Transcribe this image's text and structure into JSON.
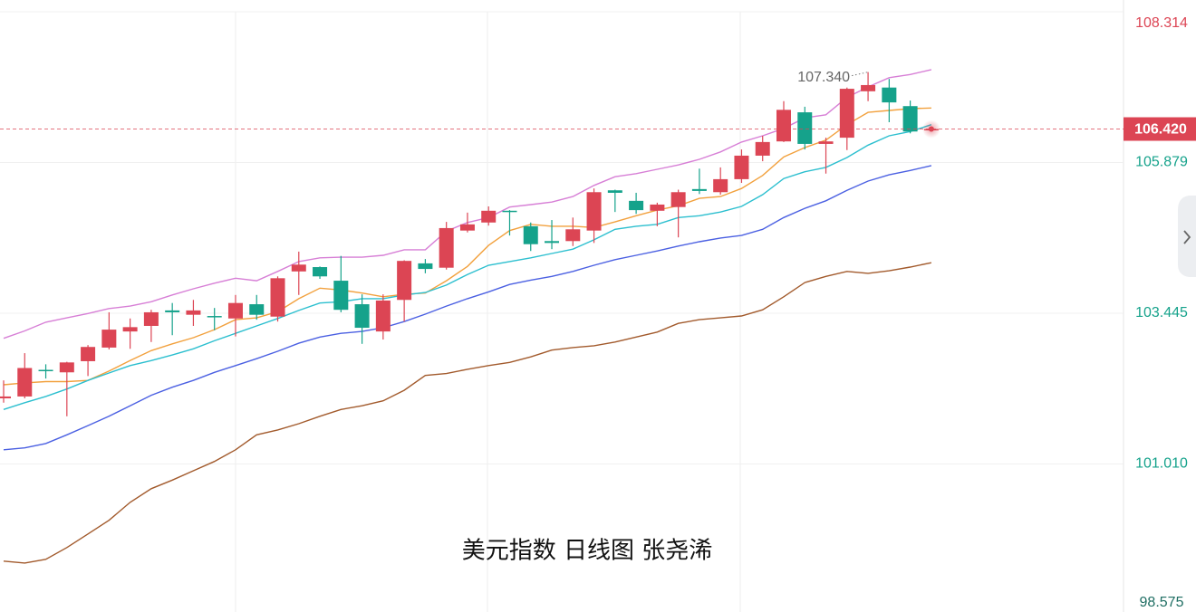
{
  "chart_data": {
    "type": "candlestick",
    "title": "美元指数 日线图  张尧浠",
    "ylim": [
      98.575,
      108.314
    ],
    "yticks": [
      108.314,
      105.879,
      103.445,
      {
        "value": 101.01,
        "label": "101.010"
      },
      98.575
    ],
    "grid": true,
    "up_color": "#dc4554",
    "down_color": "#15a28b",
    "open": [
      102.07,
      102.1,
      102.53,
      102.49,
      102.67,
      102.89,
      103.15,
      103.24,
      103.49,
      103.42,
      103.4,
      103.36,
      103.59,
      103.39,
      104.12,
      104.19,
      103.97,
      103.59,
      103.15,
      103.66,
      104.25,
      104.18,
      104.78,
      104.91,
      105.1,
      104.85,
      104.61,
      104.61,
      104.78,
      105.43,
      105.26,
      105.1,
      105.16,
      105.45,
      105.4,
      105.61,
      105.99,
      106.22,
      106.69,
      106.18,
      106.28,
      107.03,
      107.09,
      106.79,
      106.4
    ],
    "high": [
      102.36,
      102.8,
      102.62,
      102.66,
      102.93,
      103.46,
      103.36,
      103.5,
      103.61,
      103.66,
      103.53,
      103.74,
      103.74,
      104.04,
      104.44,
      104.2,
      104.37,
      103.75,
      103.75,
      104.3,
      104.32,
      104.92,
      105.07,
      105.17,
      105.11,
      104.91,
      104.95,
      104.99,
      105.46,
      105.44,
      105.39,
      105.23,
      105.44,
      105.78,
      105.8,
      106.09,
      106.31,
      106.87,
      106.78,
      106.28,
      107.09,
      107.34,
      107.23,
      106.88,
      106.46
    ],
    "low": [
      102.0,
      102.07,
      102.39,
      101.78,
      102.43,
      102.86,
      102.87,
      102.98,
      103.09,
      103.24,
      103.17,
      103.07,
      103.34,
      103.31,
      103.74,
      104.0,
      103.46,
      102.95,
      103.02,
      103.31,
      104.09,
      104.15,
      104.75,
      104.86,
      104.7,
      104.45,
      104.48,
      104.53,
      104.58,
      105.08,
      105.05,
      104.85,
      104.67,
      105.37,
      105.36,
      105.55,
      105.9,
      106.21,
      106.09,
      105.7,
      106.08,
      106.87,
      106.53,
      106.35,
      106.38
    ],
    "close": [
      102.1,
      102.56,
      102.52,
      102.65,
      102.9,
      103.18,
      103.22,
      103.46,
      103.46,
      103.49,
      103.39,
      103.61,
      103.42,
      104.01,
      104.23,
      104.04,
      103.5,
      103.21,
      103.65,
      104.29,
      104.16,
      104.82,
      104.88,
      105.1,
      105.08,
      104.56,
      104.58,
      104.8,
      105.4,
      105.39,
      105.11,
      105.2,
      105.4,
      105.42,
      105.61,
      105.99,
      106.21,
      106.73,
      106.18,
      106.22,
      107.07,
      107.13,
      106.85,
      106.38,
      106.42
    ],
    "series": [
      {
        "color": "#d77fd6",
        "values": [
          103.04,
          103.16,
          103.3,
          103.37,
          103.44,
          103.52,
          103.56,
          103.63,
          103.74,
          103.84,
          103.93,
          104.01,
          103.97,
          104.12,
          104.28,
          104.34,
          104.35,
          104.35,
          104.38,
          104.47,
          104.47,
          104.77,
          104.91,
          104.99,
          105.16,
          105.2,
          105.24,
          105.33,
          105.51,
          105.65,
          105.7,
          105.77,
          105.84,
          105.93,
          106.05,
          106.21,
          106.31,
          106.43,
          106.6,
          106.65,
          106.93,
          107.1,
          107.25,
          107.3,
          107.38
        ]
      },
      {
        "color": "#f2a13e",
        "values": [
          102.29,
          102.32,
          102.34,
          102.34,
          102.36,
          102.51,
          102.68,
          102.84,
          102.95,
          103.05,
          103.18,
          103.34,
          103.37,
          103.47,
          103.68,
          103.85,
          103.82,
          103.77,
          103.71,
          103.75,
          103.77,
          103.97,
          104.2,
          104.54,
          104.78,
          104.88,
          104.85,
          104.85,
          104.83,
          104.92,
          105.02,
          105.11,
          105.18,
          105.3,
          105.33,
          105.46,
          105.67,
          105.97,
          106.12,
          106.24,
          106.49,
          106.69,
          106.72,
          106.75,
          106.76
        ]
      },
      {
        "color": "#2cbfcf",
        "values": [
          101.89,
          102.0,
          102.1,
          102.22,
          102.36,
          102.48,
          102.6,
          102.68,
          102.77,
          102.87,
          103.0,
          103.12,
          103.24,
          103.36,
          103.49,
          103.61,
          103.63,
          103.68,
          103.68,
          103.74,
          103.78,
          103.9,
          104.07,
          104.22,
          104.28,
          104.34,
          104.41,
          104.48,
          104.63,
          104.8,
          104.85,
          104.88,
          104.99,
          105.02,
          105.08,
          105.17,
          105.36,
          105.62,
          105.73,
          105.8,
          105.96,
          106.16,
          106.31,
          106.38,
          106.49
        ]
      },
      {
        "color": "#4b60e2",
        "values": [
          101.24,
          101.27,
          101.34,
          101.48,
          101.63,
          101.78,
          101.95,
          102.12,
          102.25,
          102.36,
          102.49,
          102.6,
          102.71,
          102.83,
          102.96,
          103.06,
          103.12,
          103.15,
          103.21,
          103.31,
          103.43,
          103.56,
          103.68,
          103.79,
          103.91,
          103.98,
          104.04,
          104.12,
          104.22,
          104.31,
          104.38,
          104.45,
          104.53,
          104.6,
          104.66,
          104.7,
          104.8,
          104.99,
          105.14,
          105.26,
          105.43,
          105.58,
          105.68,
          105.75,
          105.83
        ]
      },
      {
        "color": "#a25a2c",
        "values": [
          99.44,
          99.41,
          99.47,
          99.66,
          99.88,
          100.1,
          100.39,
          100.61,
          100.75,
          100.9,
          101.05,
          101.24,
          101.48,
          101.56,
          101.66,
          101.78,
          101.89,
          101.95,
          102.03,
          102.2,
          102.44,
          102.47,
          102.54,
          102.6,
          102.65,
          102.74,
          102.85,
          102.89,
          102.92,
          102.98,
          103.06,
          103.14,
          103.28,
          103.34,
          103.37,
          103.4,
          103.5,
          103.71,
          103.94,
          104.04,
          104.12,
          104.09,
          104.13,
          104.19,
          104.26
        ]
      }
    ],
    "annotation": {
      "value": 107.34,
      "label": "107.340"
    },
    "last_price": {
      "value": 106.42,
      "label": "106.420"
    }
  }
}
